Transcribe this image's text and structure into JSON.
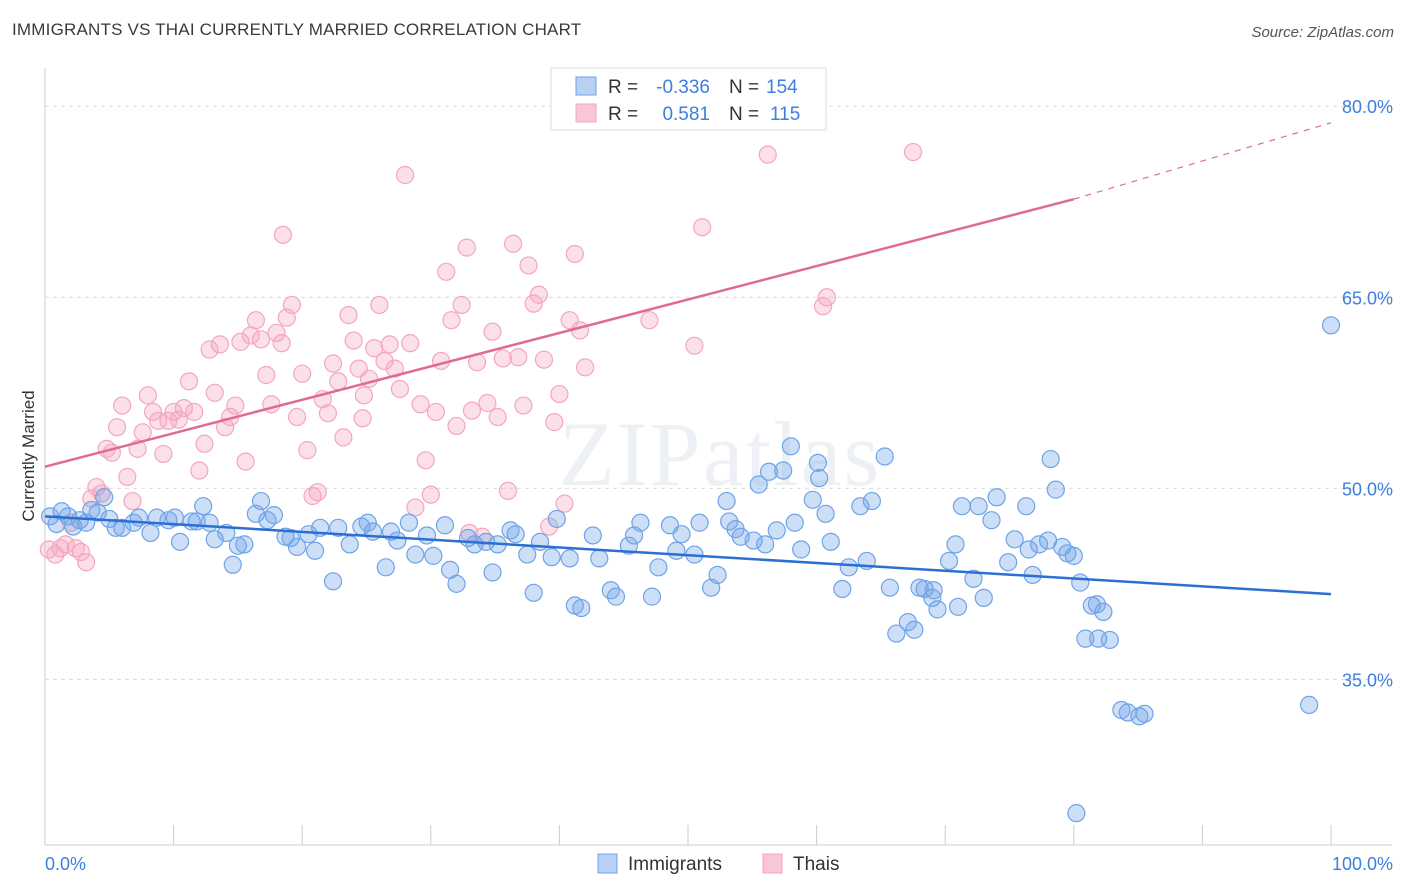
{
  "title": "IMMIGRANTS VS THAI CURRENTLY MARRIED CORRELATION CHART",
  "source": "Source: ZipAtlas.com",
  "watermark": "ZIPatlas",
  "chart_data": {
    "type": "scatter",
    "title": "IMMIGRANTS VS THAI CURRENTLY MARRIED CORRELATION CHART",
    "xlabel": "",
    "ylabel": "Currently Married",
    "xlim": [
      0,
      100
    ],
    "ylim": [
      22,
      83
    ],
    "x_tick_labels": [
      "0.0%",
      "100.0%"
    ],
    "y_ticks": [
      35,
      50,
      65,
      80
    ],
    "y_tick_labels": [
      "35.0%",
      "50.0%",
      "65.0%",
      "80.0%"
    ],
    "grid": true,
    "legend_position": "bottom-center",
    "colors": {
      "immigrants": "#6fa3e8",
      "thais": "#f4a6bf",
      "immigrants_line": "#2a6fd1",
      "thais_line": "#e06a97",
      "value_text": "#3d7ee0"
    },
    "stats": [
      {
        "series": "Immigrants",
        "r_label": "R =",
        "r_value": "-0.336",
        "n_label": "N =",
        "n_value": "154"
      },
      {
        "series": "Thais",
        "r_label": "R =",
        "r_value": "0.581",
        "n_label": "N =",
        "n_value": "115"
      }
    ],
    "series": [
      {
        "name": "Immigrants",
        "trend": {
          "x": [
            0,
            100
          ],
          "y": [
            47.8,
            41.7
          ],
          "style": "solid"
        },
        "points": [
          [
            0.4,
            47.8
          ],
          [
            0.9,
            47.2
          ],
          [
            1.3,
            48.2
          ],
          [
            1.8,
            47.8
          ],
          [
            2.2,
            47.0
          ],
          [
            2.7,
            47.5
          ],
          [
            3.2,
            47.3
          ],
          [
            3.6,
            48.3
          ],
          [
            4.1,
            48.1
          ],
          [
            4.6,
            49.3
          ],
          [
            5.0,
            47.6
          ],
          [
            5.5,
            46.9
          ],
          [
            6.0,
            46.9
          ],
          [
            6.9,
            47.3
          ],
          [
            7.3,
            47.7
          ],
          [
            8.2,
            46.5
          ],
          [
            8.7,
            47.7
          ],
          [
            9.6,
            47.5
          ],
          [
            10.1,
            47.7
          ],
          [
            10.5,
            45.8
          ],
          [
            11.4,
            47.4
          ],
          [
            11.8,
            47.4
          ],
          [
            12.3,
            48.6
          ],
          [
            12.8,
            47.3
          ],
          [
            13.2,
            46.0
          ],
          [
            14.1,
            46.5
          ],
          [
            14.6,
            44.0
          ],
          [
            15.0,
            45.5
          ],
          [
            15.5,
            45.6
          ],
          [
            16.4,
            48.0
          ],
          [
            16.8,
            49.0
          ],
          [
            17.3,
            47.5
          ],
          [
            17.8,
            47.9
          ],
          [
            18.7,
            46.2
          ],
          [
            19.1,
            46.1
          ],
          [
            19.6,
            45.4
          ],
          [
            20.5,
            46.4
          ],
          [
            21.0,
            45.1
          ],
          [
            21.4,
            46.9
          ],
          [
            22.4,
            42.7
          ],
          [
            22.8,
            46.9
          ],
          [
            23.7,
            45.6
          ],
          [
            24.6,
            47.0
          ],
          [
            25.1,
            47.3
          ],
          [
            25.5,
            46.6
          ],
          [
            26.5,
            43.8
          ],
          [
            26.9,
            46.6
          ],
          [
            27.4,
            45.9
          ],
          [
            28.3,
            47.3
          ],
          [
            28.8,
            44.8
          ],
          [
            29.7,
            46.3
          ],
          [
            30.2,
            44.7
          ],
          [
            31.1,
            47.1
          ],
          [
            31.5,
            43.6
          ],
          [
            32.0,
            42.5
          ],
          [
            32.9,
            46.1
          ],
          [
            33.4,
            45.6
          ],
          [
            34.3,
            45.8
          ],
          [
            34.8,
            43.4
          ],
          [
            35.2,
            45.6
          ],
          [
            36.2,
            46.7
          ],
          [
            36.6,
            46.4
          ],
          [
            37.5,
            44.8
          ],
          [
            38.0,
            41.8
          ],
          [
            38.5,
            45.8
          ],
          [
            39.4,
            44.6
          ],
          [
            39.8,
            47.6
          ],
          [
            40.8,
            44.5
          ],
          [
            41.2,
            40.8
          ],
          [
            41.7,
            40.6
          ],
          [
            42.6,
            46.3
          ],
          [
            43.1,
            44.5
          ],
          [
            44.0,
            42.0
          ],
          [
            44.4,
            41.5
          ],
          [
            45.4,
            45.5
          ],
          [
            45.8,
            46.3
          ],
          [
            46.3,
            47.3
          ],
          [
            47.2,
            41.5
          ],
          [
            47.7,
            43.8
          ],
          [
            48.6,
            47.1
          ],
          [
            49.1,
            45.1
          ],
          [
            49.5,
            46.4
          ],
          [
            50.5,
            44.8
          ],
          [
            50.9,
            47.3
          ],
          [
            51.8,
            42.2
          ],
          [
            52.3,
            43.2
          ],
          [
            53.2,
            47.4
          ],
          [
            53.7,
            46.8
          ],
          [
            54.1,
            46.2
          ],
          [
            55.1,
            45.9
          ],
          [
            55.5,
            50.3
          ],
          [
            56.0,
            45.6
          ],
          [
            56.9,
            46.7
          ],
          [
            57.4,
            51.4
          ],
          [
            58.3,
            47.3
          ],
          [
            58.8,
            45.2
          ],
          [
            59.7,
            49.1
          ],
          [
            60.2,
            50.8
          ],
          [
            60.7,
            48.0
          ],
          [
            61.1,
            45.8
          ],
          [
            62.0,
            42.1
          ],
          [
            62.5,
            43.8
          ],
          [
            63.4,
            48.6
          ],
          [
            63.9,
            44.3
          ],
          [
            64.3,
            49.0
          ],
          [
            65.3,
            52.5
          ],
          [
            65.7,
            42.2
          ],
          [
            66.2,
            38.6
          ],
          [
            67.1,
            39.5
          ],
          [
            67.6,
            38.9
          ],
          [
            68.0,
            42.2
          ],
          [
            69.0,
            41.4
          ],
          [
            69.4,
            40.5
          ],
          [
            70.3,
            44.3
          ],
          [
            70.8,
            45.6
          ],
          [
            71.3,
            48.6
          ],
          [
            72.2,
            42.9
          ],
          [
            72.6,
            48.6
          ],
          [
            73.6,
            47.5
          ],
          [
            74.0,
            49.3
          ],
          [
            74.9,
            44.2
          ],
          [
            75.4,
            46.0
          ],
          [
            76.3,
            48.6
          ],
          [
            76.8,
            43.2
          ],
          [
            77.3,
            45.6
          ],
          [
            78.2,
            52.3
          ],
          [
            78.6,
            49.9
          ],
          [
            79.1,
            45.4
          ],
          [
            80.0,
            44.7
          ],
          [
            80.5,
            42.6
          ],
          [
            81.4,
            40.8
          ],
          [
            81.8,
            40.9
          ],
          [
            82.3,
            40.3
          ],
          [
            82.8,
            38.1
          ],
          [
            83.7,
            32.6
          ],
          [
            84.2,
            32.4
          ],
          [
            85.1,
            32.1
          ],
          [
            85.5,
            32.3
          ],
          [
            76.5,
            45.2
          ],
          [
            78.0,
            45.9
          ],
          [
            79.5,
            44.9
          ],
          [
            80.9,
            38.2
          ],
          [
            81.9,
            38.2
          ],
          [
            73.0,
            41.4
          ],
          [
            71.0,
            40.7
          ],
          [
            69.1,
            42.0
          ],
          [
            68.4,
            42.1
          ],
          [
            58.0,
            53.3
          ],
          [
            53.0,
            49.0
          ],
          [
            56.3,
            51.3
          ],
          [
            60.1,
            52.0
          ],
          [
            98.3,
            33.0
          ],
          [
            80.2,
            24.5
          ],
          [
            100.0,
            62.8
          ]
        ]
      },
      {
        "name": "Thais",
        "trend": {
          "x": [
            0,
            80
          ],
          "y": [
            51.7,
            72.7
          ],
          "dashed_extension": {
            "x": [
              80,
              100
            ],
            "y": [
              72.7,
              78.7
            ]
          }
        },
        "points": [
          [
            0.3,
            45.2
          ],
          [
            0.8,
            44.8
          ],
          [
            1.2,
            45.3
          ],
          [
            1.6,
            45.6
          ],
          [
            2.0,
            47.3
          ],
          [
            2.4,
            45.3
          ],
          [
            2.8,
            45.0
          ],
          [
            3.2,
            44.2
          ],
          [
            3.6,
            49.2
          ],
          [
            4.0,
            50.1
          ],
          [
            4.4,
            49.6
          ],
          [
            4.8,
            53.1
          ],
          [
            5.2,
            52.8
          ],
          [
            5.6,
            54.8
          ],
          [
            6.0,
            56.5
          ],
          [
            6.4,
            50.9
          ],
          [
            6.8,
            49.0
          ],
          [
            7.2,
            53.1
          ],
          [
            7.6,
            54.4
          ],
          [
            8.0,
            57.3
          ],
          [
            8.4,
            56.0
          ],
          [
            8.8,
            55.3
          ],
          [
            9.2,
            52.7
          ],
          [
            9.6,
            55.3
          ],
          [
            10.0,
            56.0
          ],
          [
            10.4,
            55.4
          ],
          [
            10.8,
            56.3
          ],
          [
            11.2,
            58.4
          ],
          [
            11.6,
            56.0
          ],
          [
            12.0,
            51.4
          ],
          [
            12.4,
            53.5
          ],
          [
            12.8,
            60.9
          ],
          [
            13.2,
            57.5
          ],
          [
            13.6,
            61.3
          ],
          [
            14.0,
            54.8
          ],
          [
            14.4,
            55.6
          ],
          [
            14.8,
            56.5
          ],
          [
            15.2,
            61.5
          ],
          [
            15.6,
            52.1
          ],
          [
            16.0,
            62.0
          ],
          [
            16.4,
            63.2
          ],
          [
            16.8,
            61.7
          ],
          [
            17.2,
            58.9
          ],
          [
            17.6,
            56.6
          ],
          [
            18.0,
            62.2
          ],
          [
            18.4,
            61.4
          ],
          [
            18.8,
            63.4
          ],
          [
            19.2,
            64.4
          ],
          [
            19.6,
            55.6
          ],
          [
            20.0,
            59.0
          ],
          [
            20.4,
            53.0
          ],
          [
            20.8,
            49.4
          ],
          [
            21.2,
            49.7
          ],
          [
            21.6,
            57.0
          ],
          [
            22.0,
            55.9
          ],
          [
            22.4,
            59.8
          ],
          [
            22.8,
            58.4
          ],
          [
            23.2,
            54.0
          ],
          [
            23.6,
            63.6
          ],
          [
            24.0,
            61.6
          ],
          [
            24.4,
            59.4
          ],
          [
            24.8,
            57.3
          ],
          [
            25.2,
            58.6
          ],
          [
            25.6,
            61.0
          ],
          [
            26.0,
            64.4
          ],
          [
            26.4,
            60.0
          ],
          [
            26.8,
            61.3
          ],
          [
            27.2,
            59.4
          ],
          [
            27.6,
            57.8
          ],
          [
            28.0,
            74.6
          ],
          [
            28.4,
            61.4
          ],
          [
            28.8,
            48.5
          ],
          [
            29.2,
            56.6
          ],
          [
            29.6,
            52.2
          ],
          [
            30.0,
            49.5
          ],
          [
            30.4,
            56.0
          ],
          [
            30.8,
            60.0
          ],
          [
            31.2,
            67.0
          ],
          [
            31.6,
            63.2
          ],
          [
            32.0,
            54.9
          ],
          [
            32.4,
            64.4
          ],
          [
            32.8,
            68.9
          ],
          [
            33.2,
            56.1
          ],
          [
            33.6,
            59.9
          ],
          [
            34.0,
            46.2
          ],
          [
            34.4,
            56.7
          ],
          [
            34.8,
            62.3
          ],
          [
            35.2,
            55.6
          ],
          [
            35.6,
            60.2
          ],
          [
            36.0,
            49.8
          ],
          [
            36.4,
            69.2
          ],
          [
            36.8,
            60.3
          ],
          [
            37.2,
            56.5
          ],
          [
            37.6,
            67.5
          ],
          [
            38.0,
            64.5
          ],
          [
            38.4,
            65.2
          ],
          [
            38.8,
            60.1
          ],
          [
            39.2,
            47.0
          ],
          [
            39.6,
            55.2
          ],
          [
            40.0,
            57.4
          ],
          [
            40.4,
            48.8
          ],
          [
            40.8,
            63.2
          ],
          [
            41.2,
            68.4
          ],
          [
            41.6,
            62.4
          ],
          [
            42.0,
            59.5
          ],
          [
            18.5,
            69.9
          ],
          [
            33.0,
            46.5
          ],
          [
            24.7,
            55.5
          ],
          [
            47.0,
            63.2
          ],
          [
            50.5,
            61.2
          ],
          [
            56.2,
            76.2
          ],
          [
            51.1,
            70.5
          ],
          [
            60.8,
            65.0
          ],
          [
            60.5,
            64.3
          ],
          [
            67.5,
            76.4
          ]
        ]
      }
    ]
  },
  "legend": {
    "items": [
      {
        "label": "Immigrants"
      },
      {
        "label": "Thais"
      }
    ]
  }
}
